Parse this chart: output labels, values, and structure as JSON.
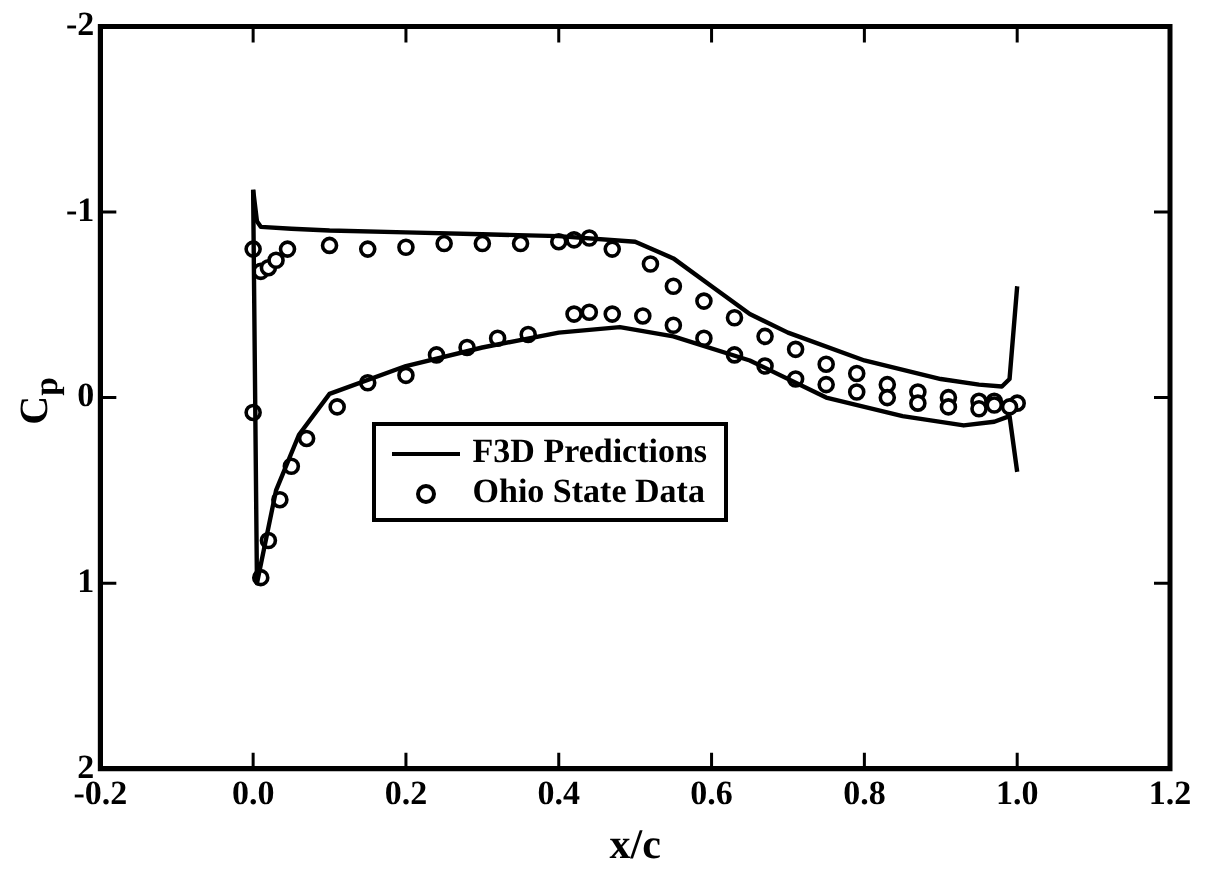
{
  "chart_data": {
    "type": "line",
    "xlabel": "x/c",
    "ylabel": "C$_{p}$",
    "xlim": [
      -0.2,
      1.2
    ],
    "xticks": [
      {
        "value": -0.2,
        "label": "-0.2"
      },
      {
        "value": 0,
        "label": "0.0"
      },
      {
        "value": 0.2,
        "label": "0.2"
      },
      {
        "value": 0.4,
        "label": "0.4"
      },
      {
        "value": 0.6,
        "label": "0.6"
      },
      {
        "value": 0.8,
        "label": "0.8"
      },
      {
        "value": 1,
        "label": "1.0"
      },
      {
        "value": 1.2,
        "label": "1.2"
      }
    ],
    "ylim": [
      2,
      -2
    ],
    "yticks": [
      -2,
      -1,
      0,
      1,
      2
    ],
    "grid": false,
    "legend": "center",
    "series": [
      {
        "name": "F3D Predictions",
        "color": "#000000",
        "marker": "none",
        "line_style": "solid",
        "x": [
          0,
          0.005,
          0.01,
          0.05,
          0.1,
          0.2,
          0.3,
          0.4,
          0.5,
          0.55,
          0.6,
          0.65,
          0.7,
          0.8,
          0.9,
          0.95,
          0.98,
          0.99,
          1
        ],
        "values": [
          -1.12,
          -0.95,
          -0.92,
          -0.91,
          -0.9,
          -0.89,
          -0.88,
          -0.87,
          -0.84,
          -0.75,
          -0.6,
          -0.45,
          -0.35,
          -0.2,
          -0.1,
          -0.07,
          -0.06,
          -0.1,
          -0.6
        ]
      },
      {
        "color": "#000000",
        "marker": "none",
        "line_style": "solid",
        "x": [
          0,
          0.005,
          0.015,
          0.03,
          0.06,
          0.1,
          0.2,
          0.3,
          0.4,
          0.48,
          0.55,
          0.65,
          0.75,
          0.85,
          0.93,
          0.97,
          0.99,
          1
        ],
        "values": [
          -1.12,
          1.0,
          0.8,
          0.5,
          0.2,
          -0.02,
          -0.17,
          -0.27,
          -0.35,
          -0.38,
          -0.33,
          -0.2,
          0.0,
          0.1,
          0.15,
          0.13,
          0.1,
          0.4
        ]
      },
      {
        "name": "Ohio State Data",
        "type": "scatter",
        "color": "#000000",
        "marker": "circle",
        "x": [
          0,
          0.01,
          0.02,
          0.03,
          0.045,
          0.1,
          0.15,
          0.2,
          0.25,
          0.3,
          0.35,
          0.4,
          0.42,
          0.44,
          0.47,
          0.52,
          0.55,
          0.59,
          0.63,
          0.67,
          0.71,
          0.75,
          0.79,
          0.83,
          0.87,
          0.91,
          0.95,
          0.97,
          1,
          0,
          0.01,
          0.02,
          0.035,
          0.05,
          0.07,
          0.11,
          0.15,
          0.2,
          0.24,
          0.28,
          0.32,
          0.36,
          0.42,
          0.44,
          0.47,
          0.51,
          0.55,
          0.59,
          0.63,
          0.67,
          0.71,
          0.75,
          0.79,
          0.83,
          0.87,
          0.91,
          0.95,
          0.97,
          0.99
        ],
        "values": [
          -0.8,
          -0.68,
          -0.7,
          -0.74,
          -0.8,
          -0.82,
          -0.8,
          -0.81,
          -0.83,
          -0.83,
          -0.83,
          -0.84,
          -0.85,
          -0.86,
          -0.8,
          -0.72,
          -0.6,
          -0.52,
          -0.43,
          -0.33,
          -0.26,
          -0.18,
          -0.13,
          -0.07,
          -0.03,
          0.0,
          0.02,
          0.02,
          0.03,
          0.08,
          0.97,
          0.77,
          0.55,
          0.37,
          0.22,
          0.05,
          -0.08,
          -0.12,
          -0.23,
          -0.27,
          -0.32,
          -0.34,
          -0.45,
          -0.46,
          -0.45,
          -0.44,
          -0.39,
          -0.32,
          -0.23,
          -0.17,
          -0.1,
          -0.07,
          -0.03,
          0.0,
          0.03,
          0.05,
          0.06,
          0.04,
          0.05
        ]
      }
    ]
  }
}
